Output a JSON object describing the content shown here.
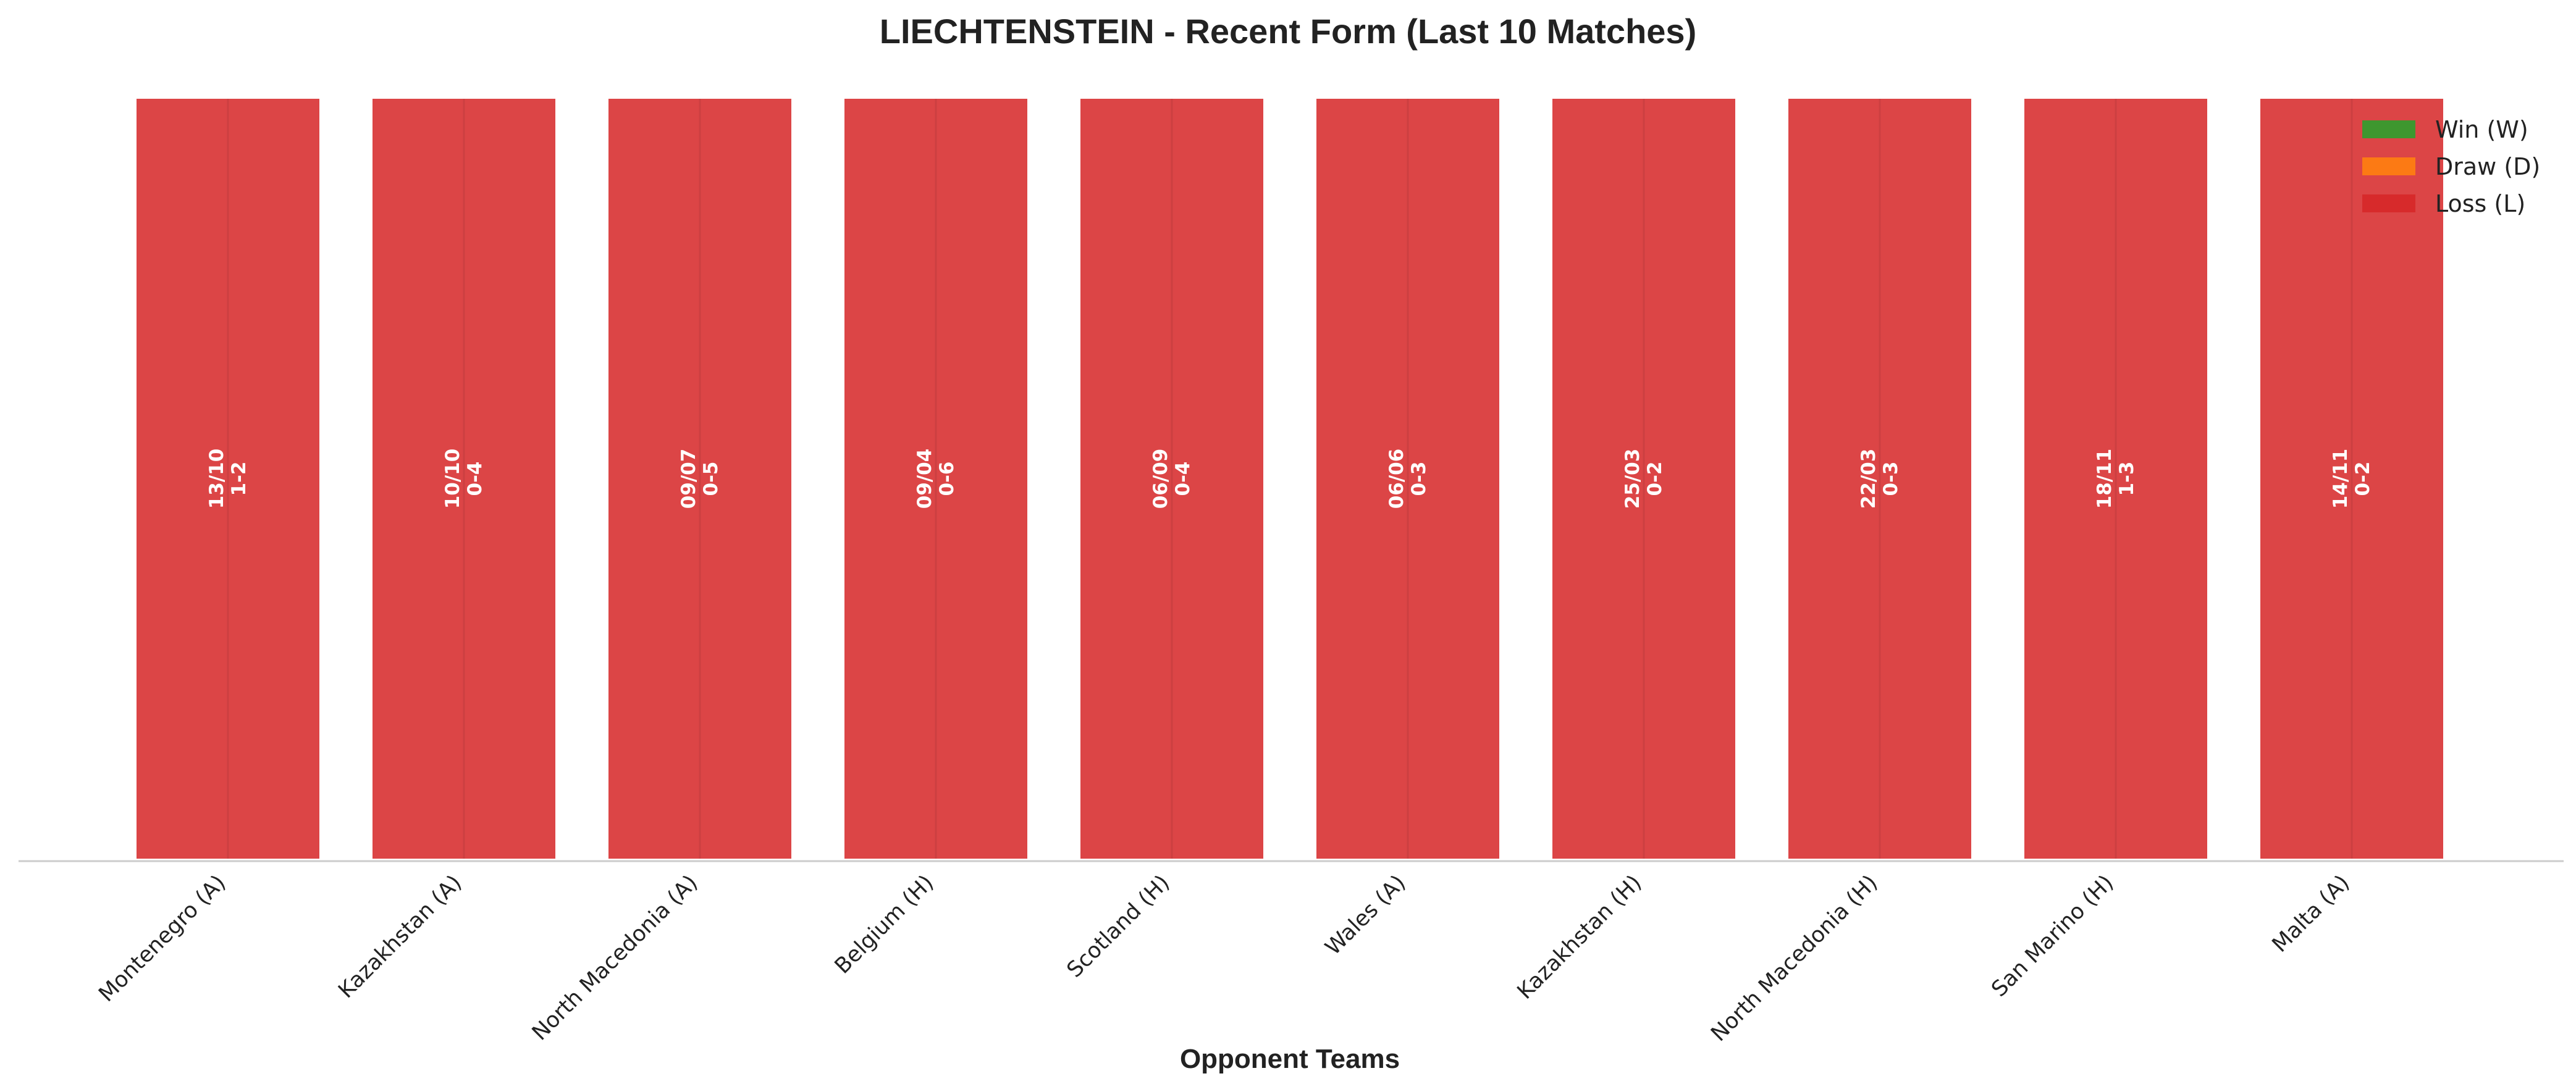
{
  "chart_data": {
    "type": "bar",
    "title": "LIECHTENSTEIN - Recent Form (Last 10 Matches)",
    "xlabel": "Opponent Teams",
    "ylabel": "",
    "ylim": [
      0,
      1
    ],
    "grid": false,
    "legend_position": "top-right",
    "colors": {
      "W": "#2ca02c",
      "D": "#ff7f0e",
      "L": "#d62728"
    },
    "legend": [
      {
        "key": "W",
        "label": "Win (W)"
      },
      {
        "key": "D",
        "label": "Draw (D)"
      },
      {
        "key": "L",
        "label": "Loss (L)"
      }
    ],
    "categories": [
      "Montenegro (A)",
      "Kazakhstan (A)",
      "North Macedonia (A)",
      "Belgium (H)",
      "Scotland (H)",
      "Wales (A)",
      "Kazakhstan (H)",
      "North Macedonia (H)",
      "San Marino (H)",
      "Malta (A)"
    ],
    "values": [
      1,
      1,
      1,
      1,
      1,
      1,
      1,
      1,
      1,
      1
    ],
    "results": [
      "L",
      "L",
      "L",
      "L",
      "L",
      "L",
      "L",
      "L",
      "L",
      "L"
    ],
    "dates": [
      "13/10",
      "10/10",
      "09/07",
      "09/04",
      "06/09",
      "06/06",
      "25/03",
      "22/03",
      "18/11",
      "14/11"
    ],
    "scores": [
      "1-2",
      "0-4",
      "0-5",
      "0-6",
      "0-4",
      "0-3",
      "0-2",
      "0-3",
      "1-3",
      "0-2"
    ]
  }
}
